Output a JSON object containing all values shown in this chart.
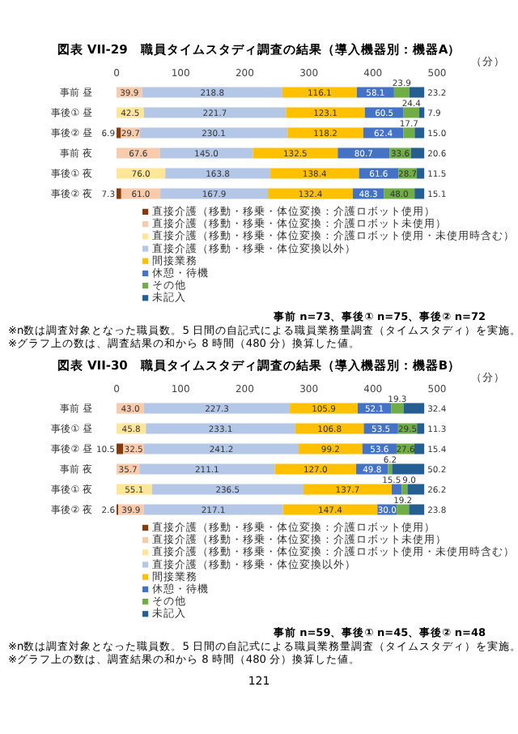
{
  "chart_data": [
    {
      "type": "bar",
      "orientation": "horizontal",
      "stacked": true,
      "title": "図表 VII-29　職員タイムスタディ調査の結果（導入機器別：機器A）",
      "xlabel": "（分）",
      "categories": [
        "事前 昼",
        "事後① 昼",
        "事後② 昼",
        "事前 夜",
        "事後① 夜",
        "事後② 夜"
      ],
      "xlim": [
        0,
        500
      ],
      "xticks": [
        0,
        100,
        200,
        300,
        400,
        500
      ],
      "legend": "bottom",
      "series": [
        {
          "name": "直接介護（移動・移乗・体位変換：介護ロボット使用）",
          "color": "#843c0c",
          "values": [
            null,
            null,
            6.9,
            null,
            null,
            7.3
          ],
          "value_labels": [
            null,
            null,
            "6.9",
            null,
            null,
            "7.3"
          ]
        },
        {
          "name": "直接介護（移動・移乗・体位変換：介護ロボット未使用）",
          "color": "#f8cbad",
          "values": [
            39.9,
            null,
            29.7,
            67.6,
            null,
            61.0
          ],
          "value_labels": [
            "39.9",
            null,
            "29.7",
            "67.6",
            null,
            "61.0"
          ]
        },
        {
          "name": "直接介護（移動・移乗・体位変換：介護ロボット使用・未使用時含む）",
          "color": "#ffe699",
          "values": [
            null,
            42.5,
            null,
            null,
            76.0,
            null
          ],
          "value_labels": [
            null,
            "42.5",
            null,
            null,
            "76.0",
            null
          ]
        },
        {
          "name": "直接介護（移動・移乗・体位変換以外）",
          "color": "#b4c7e7",
          "values": [
            218.8,
            221.7,
            230.1,
            145.0,
            163.8,
            167.9
          ],
          "value_labels": [
            "218.8",
            "221.7",
            "230.1",
            "145.0",
            "163.8",
            "167.9"
          ]
        },
        {
          "name": "間接業務",
          "color": "#ffc000",
          "values": [
            116.1,
            123.1,
            118.2,
            132.5,
            138.4,
            132.4
          ],
          "value_labels": [
            "116.1",
            "123.1",
            "118.2",
            "132.5",
            "138.4",
            "132.4"
          ]
        },
        {
          "name": "休憩・待機",
          "color": "#4472c4",
          "values": [
            58.1,
            60.5,
            62.4,
            80.7,
            61.6,
            48.3
          ],
          "value_labels": [
            "58.1",
            "60.5",
            "62.4",
            "80.7",
            "61.6",
            "48.3"
          ]
        },
        {
          "name": "その他",
          "color": "#70ad47",
          "values": [
            23.9,
            24.4,
            17.7,
            33.6,
            28.7,
            48.0
          ],
          "value_labels": [
            "23.9",
            "24.4",
            "17.7",
            "33.6",
            "28.7",
            "48.0"
          ]
        },
        {
          "name": "未記入",
          "color": "#255e91",
          "values": [
            23.2,
            7.9,
            15.0,
            20.6,
            11.5,
            15.1
          ],
          "value_labels": [
            "23.2",
            "7.9",
            "15.0",
            "20.6",
            "11.5",
            "15.1"
          ]
        }
      ],
      "annotations": [
        "事前 n=73、事後① n=75、事後② n=72",
        "※n数は調査対象となった職員数。5 日間の自記式による職員業務量調査（タイムスタディ）を実施。",
        "※グラフ上の数は、調査結果の和から 8 時間（480 分）換算した値。"
      ]
    },
    {
      "type": "bar",
      "orientation": "horizontal",
      "stacked": true,
      "title": "図表 VII-30　職員タイムスタディ調査の結果（導入機器別：機器B）",
      "xlabel": "（分）",
      "categories": [
        "事前 昼",
        "事後① 昼",
        "事後② 昼",
        "事前 夜",
        "事後① 夜",
        "事後② 夜"
      ],
      "xlim": [
        0,
        500
      ],
      "xticks": [
        0,
        100,
        200,
        300,
        400,
        500
      ],
      "legend": "bottom",
      "series": [
        {
          "name": "直接介護（移動・移乗・体位変換：介護ロボット使用）",
          "color": "#843c0c",
          "values": [
            null,
            null,
            10.5,
            null,
            null,
            2.6
          ],
          "value_labels": [
            null,
            null,
            "10.5",
            null,
            null,
            "2.6"
          ]
        },
        {
          "name": "直接介護（移動・移乗・体位変換：介護ロボット未使用）",
          "color": "#f8cbad",
          "values": [
            43.0,
            null,
            32.5,
            35.7,
            null,
            39.9
          ],
          "value_labels": [
            "43.0",
            null,
            "32.5",
            "35.7",
            null,
            "39.9"
          ]
        },
        {
          "name": "直接介護（移動・移乗・体位変換：介護ロボット使用・未使用時含む）",
          "color": "#ffe699",
          "values": [
            null,
            45.8,
            null,
            null,
            55.1,
            null
          ],
          "value_labels": [
            null,
            "45.8",
            null,
            null,
            "55.1",
            null
          ]
        },
        {
          "name": "直接介護（移動・移乗・体位変換以外）",
          "color": "#b4c7e7",
          "values": [
            227.3,
            233.1,
            241.2,
            211.1,
            236.5,
            217.1
          ],
          "value_labels": [
            "227.3",
            "233.1",
            "241.2",
            "211.1",
            "236.5",
            "217.1"
          ]
        },
        {
          "name": "間接業務",
          "color": "#ffc000",
          "values": [
            105.9,
            106.8,
            99.2,
            127.0,
            137.7,
            147.4
          ],
          "value_labels": [
            "105.9",
            "106.8",
            "99.2",
            "127.0",
            "137.7",
            "147.4"
          ]
        },
        {
          "name": "休憩・待機",
          "color": "#4472c4",
          "values": [
            52.1,
            53.5,
            53.6,
            49.8,
            15.5,
            30.0
          ],
          "value_labels": [
            "52.1",
            "53.5",
            "53.6",
            "49.8",
            "15.5",
            "30.0"
          ]
        },
        {
          "name": "その他",
          "color": "#70ad47",
          "values": [
            19.3,
            29.5,
            27.6,
            6.2,
            9.0,
            19.2
          ],
          "value_labels": [
            "19.3",
            "29.5",
            "27.6",
            "6.2",
            "9.0",
            "19.2"
          ]
        },
        {
          "name": "未記入",
          "color": "#255e91",
          "values": [
            32.4,
            11.3,
            15.4,
            50.2,
            26.2,
            23.8
          ],
          "value_labels": [
            "32.4",
            "11.3",
            "15.4",
            "50.2",
            "26.2",
            "23.8"
          ]
        }
      ],
      "annotations": [
        "事前 n=59、事後① n=45、事後② n=48",
        "※n数は調査対象となった職員数。5 日間の自記式による職員業務量調査（タイムスタディ）を実施。",
        "※グラフ上の数は、調査結果の和から 8 時間（480 分）換算した値。",
        "121"
      ]
    }
  ]
}
